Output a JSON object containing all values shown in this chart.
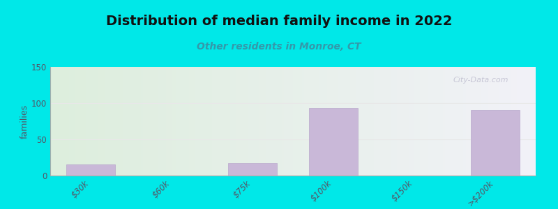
{
  "title": "Distribution of median family income in 2022",
  "subtitle": "Other residents in Monroe, CT",
  "categories": [
    "$30k",
    "$60k",
    "$75k",
    "$100k",
    "$150k",
    ">$200k"
  ],
  "values": [
    15,
    0,
    17,
    93,
    0,
    90
  ],
  "bar_color": "#c9b8d8",
  "bar_edge_color": "#b8a8cc",
  "background_outer": "#00e8e8",
  "background_inner_left": "#ddeedd",
  "background_inner_right": "#f2f2f8",
  "ylim": [
    0,
    150
  ],
  "yticks": [
    0,
    50,
    100,
    150
  ],
  "ylabel": "families",
  "title_fontsize": 14,
  "subtitle_fontsize": 10,
  "subtitle_color": "#3399aa",
  "watermark": "City-Data.com",
  "watermark_color": "#c0bfd0",
  "grid_color": "#e8e8e8",
  "axis_line_color": "#aaaaaa"
}
